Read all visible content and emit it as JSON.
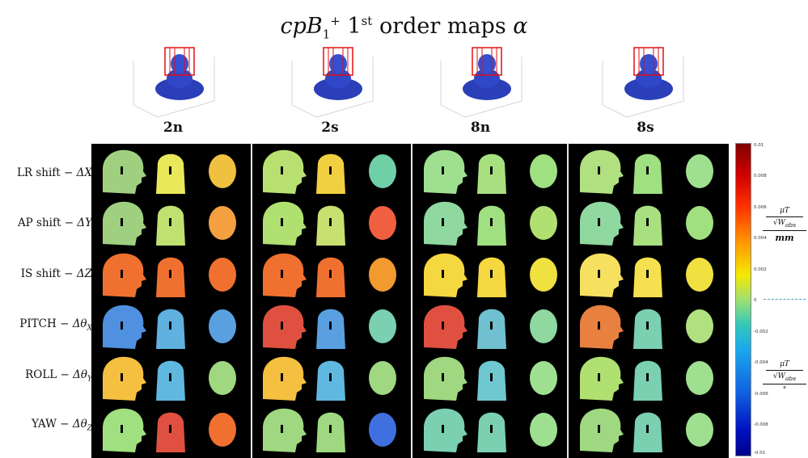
{
  "title": {
    "prefix": "cpB",
    "sub": "1",
    "sup": "+",
    "order_num": "1",
    "order_sup": "st",
    "rest": "order maps",
    "symbol": "α"
  },
  "coils": [
    {
      "label": "2n"
    },
    {
      "label": "2s"
    },
    {
      "label": "8n"
    },
    {
      "label": "8s"
    }
  ],
  "rows": [
    {
      "label": "LR shift −",
      "sym": "ΔX",
      "sub": ""
    },
    {
      "label": "AP shift −",
      "sym": "ΔY",
      "sub": ""
    },
    {
      "label": "IS shift −",
      "sym": "ΔZ",
      "sub": ""
    },
    {
      "label": "PITCH −",
      "sym": "Δθ",
      "sub": "X"
    },
    {
      "label": "ROLL −",
      "sym": "Δθ",
      "sub": "Y"
    },
    {
      "label": "YAW −",
      "sym": "Δθ",
      "sub": "Z"
    }
  ],
  "colorbar": {
    "ticks": [
      "0.01",
      "0.008",
      "0.006",
      "0.004",
      "0.002",
      "0",
      "-0.002",
      "-0.004",
      "-0.006",
      "-0.008",
      "-0.01"
    ],
    "colors": [
      "#800000",
      "#ff3000",
      "#f5e800",
      "#33c8b8",
      "#0010c0",
      "#00008b"
    ]
  },
  "units": {
    "mm": {
      "num": "μT",
      "den_root": "W",
      "den_sub": "abs",
      "den2": "mm"
    },
    "deg": {
      "num": "μT",
      "den_root": "W",
      "den_sub": "abs",
      "den2": "°"
    }
  },
  "maps": [
    [
      "#9fd080",
      "#e8e85a",
      "#f0c040",
      "#b8e070",
      "#f0d040",
      "#6fd0a8",
      "#9fe090",
      "#a8e080",
      "#9fe080",
      "#b0e080",
      "#9fe080",
      "#9fe090"
    ],
    [
      "#9fd080",
      "#c0e070",
      "#f5a040",
      "#b0e070",
      "#c8e070",
      "#f06040",
      "#8fd8a0",
      "#a0e080",
      "#b0e070",
      "#8fd8a0",
      "#a8e080",
      "#a0e080"
    ],
    [
      "#f07030",
      "#f07030",
      "#f07030",
      "#f07030",
      "#f07030",
      "#f29a30",
      "#f5d840",
      "#f5d840",
      "#f0e040",
      "#f5e060",
      "#f5e050",
      "#f0e040"
    ],
    [
      "#4f90e0",
      "#60b0e0",
      "#5aa0e0",
      "#e05040",
      "#5aa0e0",
      "#7ad0b0",
      "#e05040",
      "#70c0d0",
      "#8fd8a0",
      "#e88040",
      "#7ad0b0",
      "#b0e080"
    ],
    [
      "#f5c040",
      "#60b8e0",
      "#9fd880",
      "#f5c040",
      "#60b8e0",
      "#9fd880",
      "#9fd880",
      "#6fc8d0",
      "#9fe090",
      "#b0e070",
      "#7ad0b0",
      "#9fe090"
    ],
    [
      "#a0e080",
      "#e05040",
      "#f07030",
      "#9fd880",
      "#9fd880",
      "#4070e0",
      "#7ad0b0",
      "#7ad0b0",
      "#9fe090",
      "#9fd880",
      "#7ad0b0",
      "#9fe090"
    ]
  ]
}
